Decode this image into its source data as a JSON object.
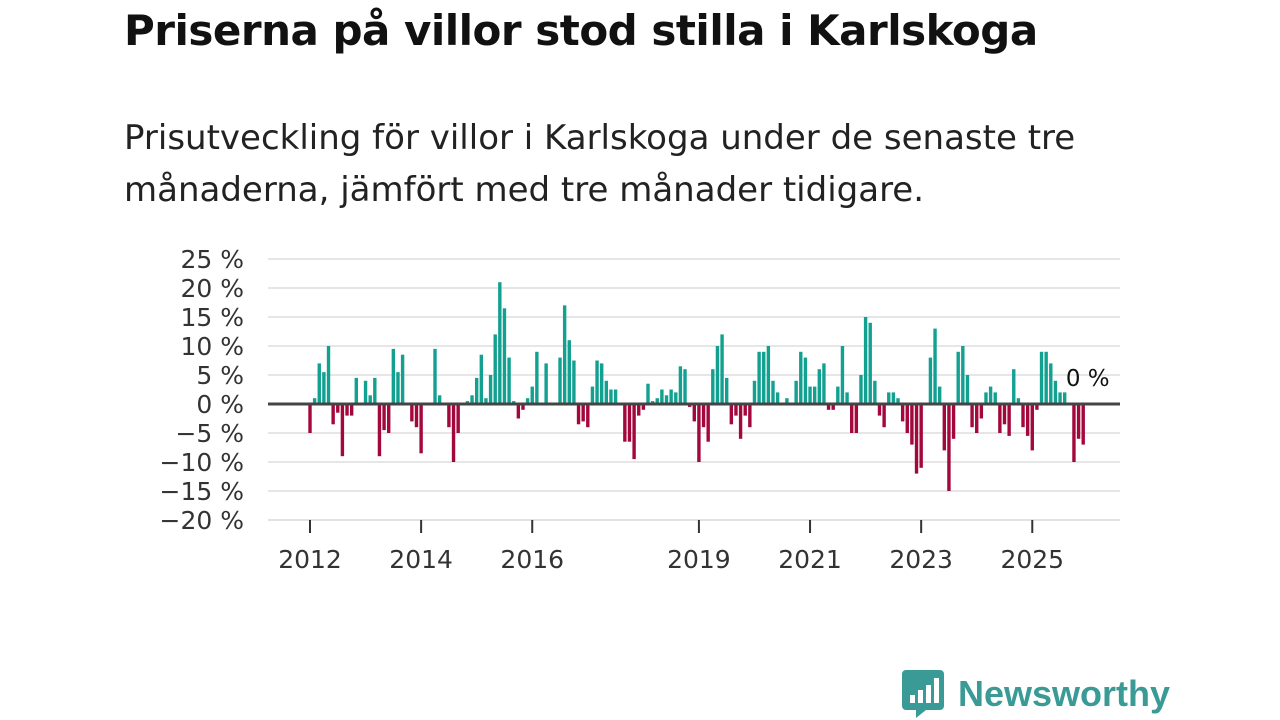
{
  "title": "Priserna på villor stod stilla i Karlskoga",
  "subtitle": "Prisutveckling för villor i Karlskoga under de senaste tre månaderna, jämfört med tre månader tidigare.",
  "brand": {
    "name": "Newsworthy",
    "color": "#3a9a96"
  },
  "colors": {
    "positive": "#12a191",
    "negative": "#a3083d",
    "grid": "#dddddd",
    "zero": "#444444"
  },
  "chart_data": {
    "type": "bar",
    "ylabel": "",
    "xlabel": "",
    "ylim": [
      -20,
      25
    ],
    "yticks": [
      25,
      20,
      15,
      10,
      5,
      0,
      -5,
      -10,
      -15,
      -20
    ],
    "ytick_labels": [
      "25 %",
      "20 %",
      "15 %",
      "10 %",
      "5 %",
      "0 %",
      "−5 %",
      "−10 %",
      "−15 %",
      "−20 %"
    ],
    "xticks": [
      {
        "label": "2012",
        "year": 2012
      },
      {
        "label": "2014",
        "year": 2014
      },
      {
        "label": "2016",
        "year": 2016
      },
      {
        "label": "2019",
        "year": 2019
      },
      {
        "label": "2021",
        "year": 2021
      },
      {
        "label": "2023",
        "year": 2023
      },
      {
        "label": "2025",
        "year": 2025
      }
    ],
    "start_year": 2012,
    "last_value_label": "0 %",
    "values": [
      -5,
      1,
      7,
      5.5,
      10,
      -3.5,
      -1.5,
      -9,
      -2,
      -2,
      4.5,
      0,
      4,
      1.5,
      4.5,
      -9,
      -4.5,
      -5,
      9.5,
      5.5,
      8.5,
      0,
      -3,
      -4,
      -8.5,
      0,
      0,
      9.5,
      1.5,
      0,
      -4,
      -10,
      -5,
      0,
      0.5,
      1.5,
      4.5,
      8.5,
      1,
      5,
      12,
      21,
      16.5,
      8,
      0.5,
      -2.5,
      -1,
      1,
      3,
      9,
      0,
      7,
      0,
      0,
      8,
      17,
      11,
      7.5,
      -3.5,
      -3,
      -4,
      3,
      7.5,
      7,
      4,
      2.5,
      2.5,
      0,
      -6.5,
      -6.5,
      -9.5,
      -2,
      -1,
      3.5,
      0.5,
      1,
      2.5,
      1.5,
      2.5,
      2,
      6.5,
      6,
      -0.5,
      -3,
      -10,
      -4,
      -6.5,
      6,
      10,
      12,
      4.5,
      -3.5,
      -2,
      -6,
      -2,
      -4,
      4,
      9,
      9,
      10,
      4,
      2,
      0,
      1,
      0,
      4,
      9,
      8,
      3,
      3,
      6,
      7,
      -1,
      -1,
      3,
      10,
      2,
      -5,
      -5,
      5,
      15,
      14,
      4,
      -2,
      -4,
      2,
      2,
      1,
      -3,
      -5,
      -7,
      -12,
      -11,
      0,
      8,
      13,
      3,
      -8,
      -15,
      -6,
      9,
      10,
      5,
      -4,
      -5,
      -2.5,
      2,
      3,
      2,
      -5,
      -3.5,
      -5.5,
      6,
      1,
      -4,
      -5.5,
      -8,
      -1,
      9,
      9,
      7,
      4,
      2,
      2,
      0,
      -10,
      -6,
      -7,
      0
    ]
  }
}
